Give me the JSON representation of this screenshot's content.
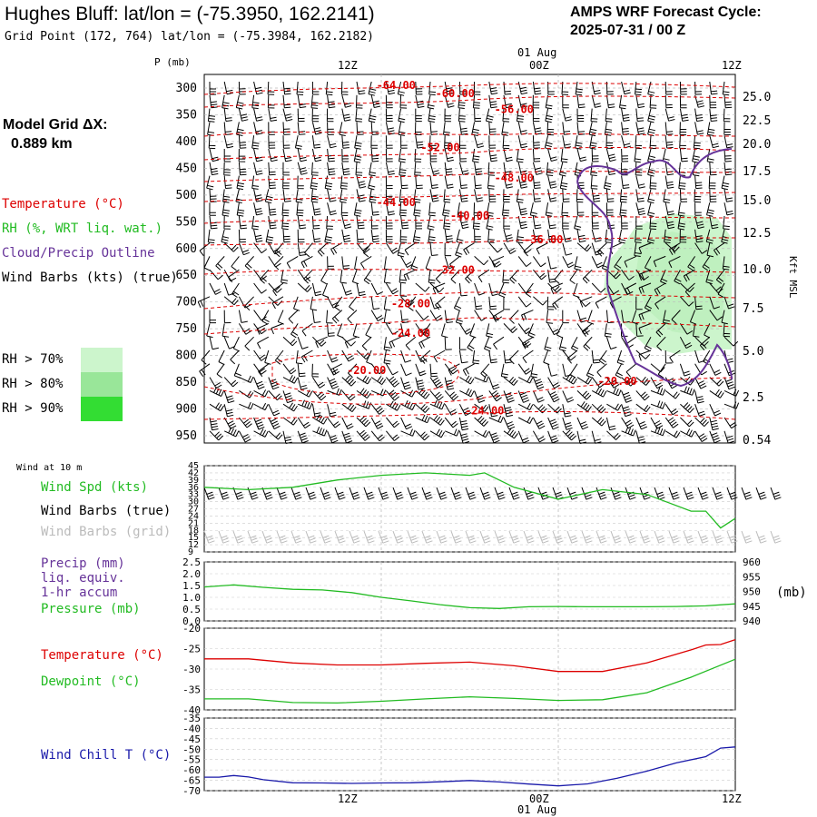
{
  "header": {
    "title": "Hughes Bluff:  lat/lon = (-75.3950, 162.2141)",
    "subtitle": "Grid Point (172, 764) lat/lon = (-75.3984, 162.2182)",
    "cycle_line1": "AMPS WRF Forecast Cycle:",
    "cycle_line2": "2025-07-31 / 00  Z",
    "grid_dx_line1": "Model Grid ΔX:",
    "grid_dx_line2": "0.889 km"
  },
  "legend": {
    "temperature": "Temperature (°C)",
    "rh": "RH (%, WRT liq. wat.)",
    "cloud": "Cloud/Precip Outline",
    "wind_barbs": "Wind Barbs (kts) (true)",
    "rh70": "RH > 70%",
    "rh80": "RH > 80%",
    "rh90": "RH > 90%"
  },
  "colors": {
    "temperature": "#dd0000",
    "rh_green": "#22bb22",
    "cloud_outline": "#663399",
    "wind_chill": "#1a1aaa",
    "rh70": "#ccf5cc",
    "rh80": "#99e699",
    "rh90": "#33dd33"
  },
  "time_axis": {
    "top_label": "01 Aug",
    "bottom_label": "01 Aug",
    "ticks": [
      "12Z",
      "00Z",
      "12Z"
    ]
  },
  "chart_data": [
    {
      "id": "upper-air",
      "type": "heatmap",
      "ylabel": "P (mb)",
      "right_axis_label": "Kft MSL",
      "pressure_ticks": [
        300,
        350,
        400,
        450,
        500,
        550,
        600,
        650,
        700,
        750,
        800,
        850,
        900,
        950
      ],
      "height_ticks": [
        "25.0",
        "22.5",
        "20.0",
        "17.5",
        "15.0",
        "12.5",
        "10.0",
        "7.5",
        "5.0",
        "2.5",
        "0.54"
      ],
      "isotherm_labels": [
        {
          "label": "-64.00",
          "hour": 13,
          "p": 302
        },
        {
          "label": "-60.00",
          "hour": 17,
          "p": 317
        },
        {
          "label": "-56.00",
          "hour": 21,
          "p": 347
        },
        {
          "label": "-52.00",
          "hour": 16,
          "p": 418
        },
        {
          "label": "-48.00",
          "hour": 21,
          "p": 475
        },
        {
          "label": "-44.00",
          "hour": 13,
          "p": 521
        },
        {
          "label": "-40.00",
          "hour": 18,
          "p": 545
        },
        {
          "label": "-36.00",
          "hour": 23,
          "p": 590
        },
        {
          "label": "-32.00",
          "hour": 17,
          "p": 647
        },
        {
          "label": "-28.00",
          "hour": 14,
          "p": 710
        },
        {
          "label": "-24.00",
          "hour": 14,
          "p": 765
        },
        {
          "label": "-20.00",
          "hour": 11,
          "p": 835
        },
        {
          "label": "-20.00",
          "hour": 28,
          "p": 855
        },
        {
          "label": "-24.00",
          "hour": 19,
          "p": 910
        }
      ]
    },
    {
      "id": "wind-10m",
      "type": "line",
      "title": "Wind at 10 m",
      "yticks": [
        45,
        42,
        39,
        36,
        33,
        30,
        27,
        24,
        21,
        18,
        15,
        12,
        9
      ],
      "ylim": [
        9,
        45
      ],
      "series": [
        {
          "name": "Wind Spd (kts)",
          "hours": [
            0,
            3,
            6,
            9,
            12,
            15,
            18,
            19,
            20,
            21,
            24,
            27,
            30,
            33,
            34,
            35,
            36
          ],
          "values": [
            36,
            35,
            36,
            39,
            41,
            42,
            41,
            42,
            39,
            36,
            31,
            35,
            33,
            26,
            26,
            19,
            23
          ]
        }
      ],
      "legend": {
        "speed": "Wind Spd (kts)",
        "barbs_true": "Wind Barbs (true)",
        "barbs_grid": "Wind Barbs (grid)"
      }
    },
    {
      "id": "precip-pressure",
      "type": "line",
      "left_ticks": [
        "2.5",
        "2.0",
        "1.5",
        "1.0",
        "0.5",
        "0.0"
      ],
      "right_ticks": [
        960,
        955,
        950,
        945,
        940
      ],
      "right_unit": "(mb)",
      "ylim": [
        940,
        960
      ],
      "series": [
        {
          "name": "Pressure (mb)",
          "hours": [
            0,
            2,
            4,
            6,
            8,
            10,
            12,
            14,
            16,
            18,
            20,
            22,
            24,
            26,
            28,
            30,
            32,
            34,
            36
          ],
          "values": [
            951.5,
            952.2,
            951.4,
            950.7,
            950.5,
            949.6,
            948.0,
            946.8,
            945.5,
            944.5,
            944.2,
            944.8,
            944.9,
            944.8,
            944.8,
            944.8,
            944.9,
            945.1,
            945.8
          ]
        }
      ],
      "legend": {
        "precip_1": "Precip (mm)",
        "precip_2": "liq. equiv.",
        "precip_3": "1-hr accum",
        "pressure": "Pressure (mb)"
      }
    },
    {
      "id": "temp-dew",
      "type": "line",
      "yticks": [
        -20,
        -25,
        -30,
        -35,
        -40
      ],
      "ylim": [
        -40,
        -20
      ],
      "series": [
        {
          "name": "Temperature (°C)",
          "hours": [
            0,
            3,
            6,
            9,
            12,
            15,
            18,
            21,
            24,
            27,
            30,
            33,
            34,
            35,
            36
          ],
          "values": [
            -27.5,
            -27.5,
            -28.5,
            -29.0,
            -29.0,
            -28.6,
            -28.3,
            -29.2,
            -30.6,
            -30.6,
            -28.5,
            -25.3,
            -24.1,
            -24.0,
            -22.8
          ]
        },
        {
          "name": "Dewpoint (°C)",
          "hours": [
            0,
            3,
            6,
            9,
            12,
            15,
            18,
            21,
            24,
            27,
            30,
            33,
            36
          ],
          "values": [
            -37.3,
            -37.3,
            -38.2,
            -38.3,
            -37.9,
            -37.3,
            -36.8,
            -37.2,
            -37.7,
            -37.5,
            -35.8,
            -32.0,
            -27.6
          ]
        }
      ],
      "legend": {
        "temperature": "Temperature (°C)",
        "dewpoint": "Dewpoint (°C)"
      }
    },
    {
      "id": "wind-chill",
      "type": "line",
      "yticks": [
        -35,
        -40,
        -45,
        -50,
        -55,
        -60,
        -65,
        -70
      ],
      "ylim": [
        -70,
        -35
      ],
      "series": [
        {
          "name": "Wind Chill T (°C)",
          "hours": [
            0,
            1,
            2,
            3,
            4,
            6,
            8,
            10,
            12,
            14,
            16,
            18,
            20,
            22,
            24,
            26,
            28,
            30,
            32,
            34,
            35,
            36
          ],
          "values": [
            -63.5,
            -63.5,
            -62.7,
            -63.4,
            -64.7,
            -66.2,
            -66.3,
            -66.5,
            -66.3,
            -66.2,
            -65.7,
            -65.1,
            -65.8,
            -66.8,
            -67.7,
            -66.7,
            -64.0,
            -60.6,
            -56.6,
            -53.6,
            -49.5,
            -48.9
          ]
        }
      ],
      "legend": {
        "wind_chill": "Wind Chill T (°C)"
      }
    }
  ]
}
